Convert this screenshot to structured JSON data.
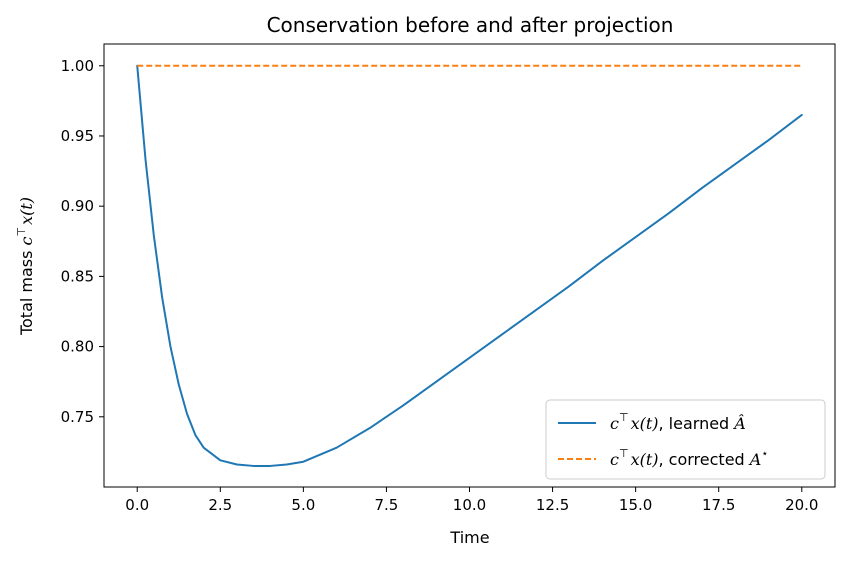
{
  "chart_data": {
    "type": "line",
    "title": "Conservation before and after projection",
    "xlabel": "Time",
    "ylabel": "Total mass c⊤x(t)",
    "ylabel_prefix": "Total mass ",
    "ylabel_math": "c",
    "ylabel_sup": "⊤",
    "ylabel_suffix": "x(t)",
    "xlim": [
      -1,
      21
    ],
    "ylim": [
      0.7,
      1.0155
    ],
    "xticks": [
      0.0,
      2.5,
      5.0,
      7.5,
      10.0,
      12.5,
      15.0,
      17.5,
      20.0
    ],
    "xtick_labels": [
      "0.0",
      "2.5",
      "5.0",
      "7.5",
      "10.0",
      "12.5",
      "15.0",
      "17.5",
      "20.0"
    ],
    "yticks": [
      0.75,
      0.8,
      0.85,
      0.9,
      0.95,
      1.0
    ],
    "ytick_labels": [
      "0.75",
      "0.80",
      "0.85",
      "0.90",
      "0.95",
      "1.00"
    ],
    "grid": false,
    "legend_position": "bottom-right",
    "series": [
      {
        "name": "c⊤x(t), learned Â",
        "legend_math": "c",
        "legend_sup": "⊤",
        "legend_mid": "x(t)",
        "legend_text": ", learned ",
        "legend_symbol": "Â",
        "color": "#1f77b4",
        "style": "solid",
        "x": [
          0,
          0.25,
          0.5,
          0.75,
          1.0,
          1.25,
          1.5,
          1.75,
          2.0,
          2.5,
          3.0,
          3.5,
          4.0,
          4.5,
          5.0,
          6.0,
          7.0,
          8.0,
          9.0,
          10.0,
          11.0,
          12.0,
          13.0,
          14.0,
          15.0,
          16.0,
          17.0,
          18.0,
          19.0,
          20.0
        ],
        "values": [
          1.0,
          0.933,
          0.879,
          0.835,
          0.8,
          0.773,
          0.752,
          0.737,
          0.728,
          0.719,
          0.716,
          0.715,
          0.715,
          0.716,
          0.718,
          0.728,
          0.742,
          0.758,
          0.775,
          0.792,
          0.809,
          0.826,
          0.843,
          0.861,
          0.878,
          0.895,
          0.913,
          0.93,
          0.947,
          0.965
        ]
      },
      {
        "name": "c⊤x(t), corrected A⋆",
        "legend_math": "c",
        "legend_sup": "⊤",
        "legend_mid": "x(t)",
        "legend_text": ", corrected ",
        "legend_symbol": "A",
        "legend_symbol_sup": "⋆",
        "color": "#ff7f0e",
        "style": "dashed",
        "x": [
          0,
          20
        ],
        "values": [
          1.0,
          1.0
        ]
      }
    ]
  }
}
